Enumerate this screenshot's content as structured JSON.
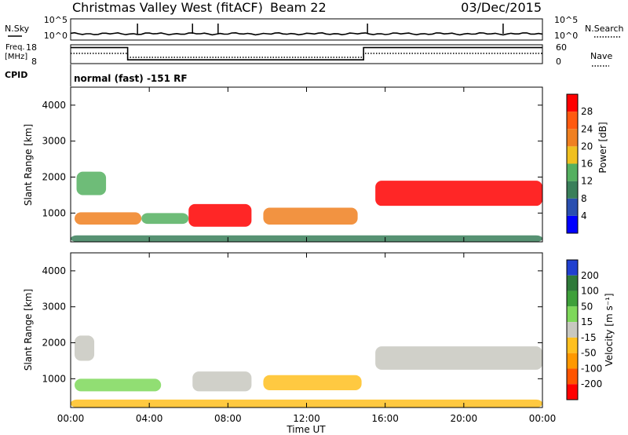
{
  "header": {
    "station": "Christmas Valley West (fitACF)",
    "beam": "Beam 22",
    "date": "03/Dec/2015"
  },
  "cpid_text": "normal (fast) -151 RF",
  "left_labels": {
    "nsky": "N.Sky",
    "nsky_top": "10^5",
    "nsky_bottom": "10^0",
    "freq_line1": "Freq.",
    "freq_line2": "[MHz]",
    "freq_top": "18",
    "freq_bottom": "8",
    "cpid": "CPID"
  },
  "right_labels": {
    "nsearch_top": "10^5",
    "nsearch_bottom": "10^0",
    "nsearch": "N.Search",
    "nave_top": "60",
    "nave_bottom": "0",
    "nave": "Nave"
  },
  "power_colorbar": {
    "label": "Power [dB]",
    "ticks": [
      "4",
      "8",
      "12",
      "16",
      "20",
      "24",
      "28"
    ],
    "colors": [
      "#0000ff",
      "#2a4fb0",
      "#3a7f5a",
      "#55b060",
      "#f0c020",
      "#f08020",
      "#ff5a10",
      "#ff0000"
    ]
  },
  "velocity_colorbar": {
    "label": "Velocity [m s⁻¹]",
    "ticks": [
      "200",
      "100",
      "50",
      "15",
      "-15",
      "-50",
      "-100",
      "-200"
    ],
    "colors": [
      "#2040d0",
      "#2f7a3a",
      "#3ea03a",
      "#7ed85a",
      "#c8c8c0",
      "#ffc020",
      "#ff9800",
      "#ff5500",
      "#ff0000"
    ]
  },
  "chart_data": [
    {
      "type": "heatmap",
      "name": "power",
      "ylabel": "Slant Range [km]",
      "ylim": [
        200,
        4500
      ],
      "xlim": [
        0,
        24
      ],
      "yticks": [
        1000,
        2000,
        3000,
        4000
      ],
      "blobs": [
        {
          "t0": 0.2,
          "t1": 3.6,
          "r0": 680,
          "r1": 1020,
          "power_db": 20
        },
        {
          "t0": 0.3,
          "t1": 1.8,
          "r0": 1500,
          "r1": 2150,
          "power_db": 12
        },
        {
          "t0": 3.6,
          "t1": 6.0,
          "r0": 700,
          "r1": 1000,
          "power_db": 14
        },
        {
          "t0": 6.0,
          "t1": 9.2,
          "r0": 620,
          "r1": 1250,
          "power_db": 30
        },
        {
          "t0": 9.8,
          "t1": 14.6,
          "r0": 680,
          "r1": 1150,
          "power_db": 20
        },
        {
          "t0": 15.5,
          "t1": 24.0,
          "r0": 1200,
          "r1": 1900,
          "power_db": 28
        },
        {
          "t0": 0.0,
          "t1": 24.0,
          "r0": 200,
          "r1": 380,
          "power_db": 8
        }
      ]
    },
    {
      "type": "heatmap",
      "name": "velocity",
      "ylabel": "Slant Range [km]",
      "xlabel": "Time UT",
      "ylim": [
        200,
        4500
      ],
      "xlim": [
        0,
        24
      ],
      "yticks": [
        1000,
        2000,
        3000,
        4000
      ],
      "xticks": [
        "00:00",
        "04:00",
        "08:00",
        "12:00",
        "16:00",
        "20:00",
        "00:00"
      ],
      "blobs": [
        {
          "t0": 0.2,
          "t1": 4.6,
          "r0": 650,
          "r1": 1000,
          "velocity": 30
        },
        {
          "t0": 6.2,
          "t1": 9.2,
          "r0": 650,
          "r1": 1200,
          "velocity": 0
        },
        {
          "t0": 9.8,
          "t1": 14.8,
          "r0": 680,
          "r1": 1100,
          "velocity": -40
        },
        {
          "t0": 15.5,
          "t1": 24.0,
          "r0": 1250,
          "r1": 1900,
          "velocity": 0
        },
        {
          "t0": 0.2,
          "t1": 1.2,
          "r0": 1500,
          "r1": 2200,
          "velocity": 0
        },
        {
          "t0": 0.0,
          "t1": 24.0,
          "r0": 200,
          "r1": 420,
          "velocity": -30
        }
      ]
    }
  ],
  "nave": {
    "segments": [
      {
        "t0": 0.0,
        "t1": 2.9,
        "freq_mhz": 16.5
      },
      {
        "t0": 2.9,
        "t1": 14.9,
        "freq_mhz": 10.0
      },
      {
        "t0": 14.9,
        "t1": 24.0,
        "freq_mhz": 16.5
      }
    ]
  }
}
